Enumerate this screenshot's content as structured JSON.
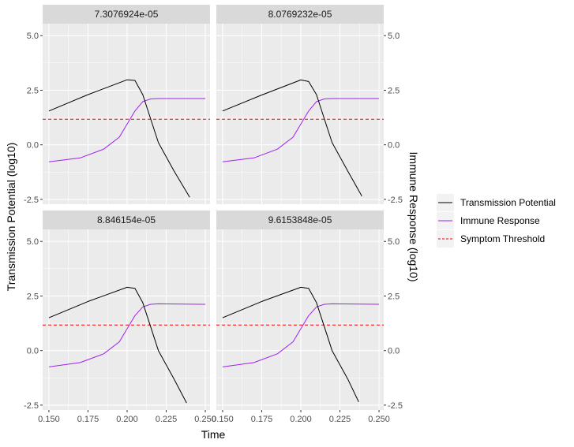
{
  "chart_data": {
    "type": "line",
    "facet_layout": "2x2",
    "xlabel": "Time",
    "ylabel_left": "Transmission Potential (log10)",
    "ylabel_right": "Immune Response (log10)",
    "xlim": [
      0.146,
      0.253
    ],
    "ylim": [
      -2.72,
      5.55
    ],
    "x_ticks": [
      0.15,
      0.175,
      0.2,
      0.225,
      0.25
    ],
    "x_tick_labels": [
      "0.150",
      "0.175",
      "0.200",
      "0.225",
      "0.250"
    ],
    "y_ticks": [
      -2.5,
      0.0,
      2.5,
      5.0
    ],
    "y_tick_labels": [
      "-2.5",
      "0.0",
      "2.5",
      "5.0"
    ],
    "grid": true,
    "legend_position": "right",
    "legend": [
      {
        "label": "Transmission Potential",
        "color": "#000000",
        "dash": "solid"
      },
      {
        "label": "Immune Response",
        "color": "#a020f0",
        "dash": "solid"
      },
      {
        "label": "Symptom Threshold",
        "color": "#ff0000",
        "dash": "dashed"
      }
    ],
    "panels": [
      {
        "strip": "7.3076924e-05",
        "symptom_threshold": 1.17,
        "series": [
          {
            "name": "Transmission Potential",
            "color": "#000000",
            "x": [
              0.15,
              0.175,
              0.2,
              0.205,
              0.21,
              0.215,
              0.22,
              0.23,
              0.24
            ],
            "y": [
              1.55,
              2.3,
              2.98,
              2.95,
              2.3,
              1.2,
              0.1,
              -1.2,
              -2.4
            ]
          },
          {
            "name": "Immune Response",
            "color": "#a020f0",
            "x": [
              0.15,
              0.17,
              0.185,
              0.195,
              0.2,
              0.205,
              0.21,
              0.215,
              0.22,
              0.25
            ],
            "y": [
              -0.78,
              -0.6,
              -0.2,
              0.35,
              0.95,
              1.55,
              1.98,
              2.1,
              2.12,
              2.12
            ]
          }
        ]
      },
      {
        "strip": "8.0769232e-05",
        "symptom_threshold": 1.17,
        "series": [
          {
            "name": "Transmission Potential",
            "color": "#000000",
            "x": [
              0.15,
              0.175,
              0.2,
              0.205,
              0.21,
              0.215,
              0.22,
              0.23,
              0.239
            ],
            "y": [
              1.55,
              2.28,
              2.97,
              2.9,
              2.3,
              1.2,
              0.1,
              -1.2,
              -2.35
            ]
          },
          {
            "name": "Immune Response",
            "color": "#a020f0",
            "x": [
              0.15,
              0.17,
              0.185,
              0.195,
              0.2,
              0.205,
              0.21,
              0.215,
              0.22,
              0.25
            ],
            "y": [
              -0.78,
              -0.6,
              -0.2,
              0.35,
              0.95,
              1.55,
              1.98,
              2.1,
              2.12,
              2.12
            ]
          }
        ]
      },
      {
        "strip": "8.846154e-05",
        "symptom_threshold": 1.17,
        "series": [
          {
            "name": "Transmission Potential",
            "color": "#000000",
            "x": [
              0.15,
              0.175,
              0.2,
              0.205,
              0.21,
              0.215,
              0.22,
              0.23,
              0.238
            ],
            "y": [
              1.5,
              2.25,
              2.9,
              2.85,
              2.2,
              1.1,
              0.0,
              -1.3,
              -2.4
            ]
          },
          {
            "name": "Immune Response",
            "color": "#a020f0",
            "x": [
              0.15,
              0.17,
              0.185,
              0.195,
              0.2,
              0.205,
              0.21,
              0.215,
              0.22,
              0.25
            ],
            "y": [
              -0.75,
              -0.55,
              -0.15,
              0.4,
              1.0,
              1.6,
              2.0,
              2.12,
              2.14,
              2.12
            ]
          }
        ]
      },
      {
        "strip": "9.6153848e-05",
        "symptom_threshold": 1.17,
        "series": [
          {
            "name": "Transmission Potential",
            "color": "#000000",
            "x": [
              0.15,
              0.175,
              0.2,
              0.205,
              0.21,
              0.215,
              0.22,
              0.23,
              0.237
            ],
            "y": [
              1.5,
              2.25,
              2.9,
              2.85,
              2.2,
              1.1,
              0.0,
              -1.3,
              -2.35
            ]
          },
          {
            "name": "Immune Response",
            "color": "#a020f0",
            "x": [
              0.15,
              0.17,
              0.185,
              0.195,
              0.2,
              0.205,
              0.21,
              0.215,
              0.22,
              0.25
            ],
            "y": [
              -0.75,
              -0.55,
              -0.15,
              0.4,
              1.0,
              1.6,
              2.0,
              2.12,
              2.14,
              2.12
            ]
          }
        ]
      }
    ]
  }
}
